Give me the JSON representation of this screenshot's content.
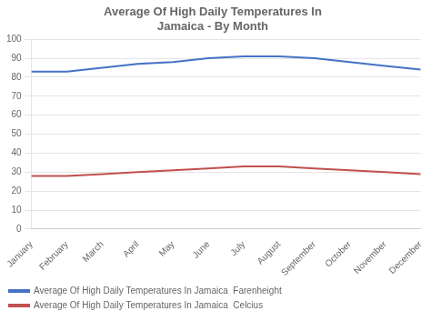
{
  "chart_data": {
    "type": "line",
    "title": "Average Of High Daily Temperatures In\nJamaica - By Month",
    "categories": [
      "January",
      "February",
      "March",
      "April",
      "May",
      "June",
      "July",
      "August",
      "September",
      "October",
      "November",
      "December"
    ],
    "series": [
      {
        "name": "Average Of High Daily Temperatures In Jamaica  Farenheight",
        "color": "#4472C4",
        "values": [
          83,
          83,
          85,
          87,
          88,
          90,
          91,
          91,
          90,
          88,
          86,
          84
        ]
      },
      {
        "name": "Average Of High Daily Temperatures In Jamaica  Celcius",
        "color": "#C0504D",
        "values": [
          28,
          28,
          29,
          30,
          31,
          32,
          33,
          33,
          32,
          31,
          30,
          29
        ]
      }
    ],
    "ylim": [
      0,
      100
    ],
    "yticks": [
      0,
      10,
      20,
      30,
      40,
      50,
      60,
      70,
      80,
      90,
      100
    ],
    "grid": "y",
    "legend": "bottom"
  }
}
